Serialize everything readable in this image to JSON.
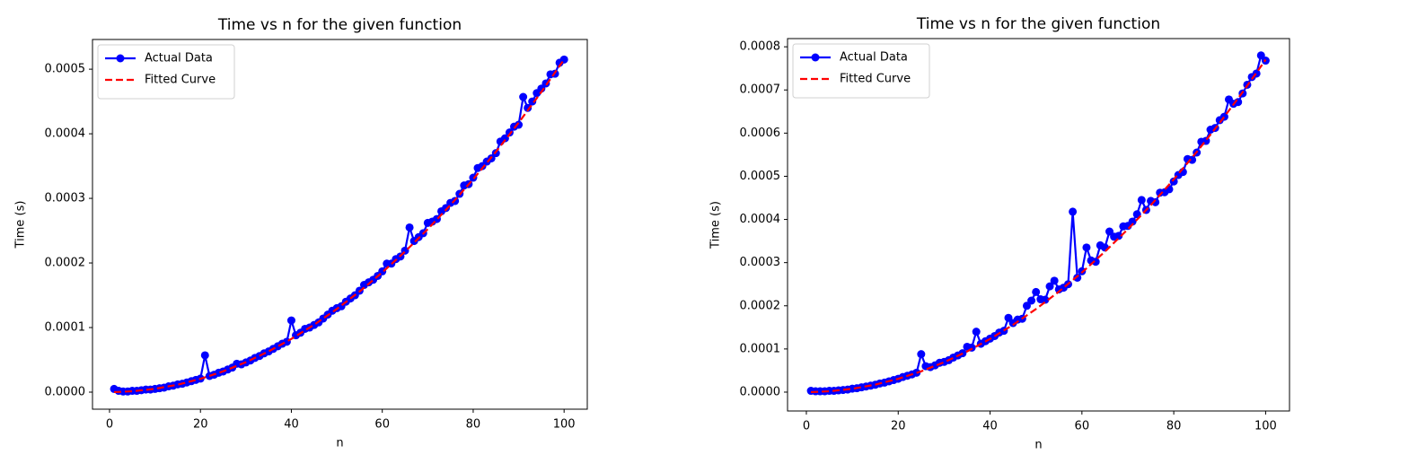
{
  "chart_data": [
    {
      "type": "line",
      "title": "Time vs n for the given function",
      "xlabel": "n",
      "ylabel": "Time (s)",
      "xlim": [
        -3.75,
        105.1
      ],
      "ylim": [
        -2.64e-05,
        0.000546
      ],
      "xticks": [
        0,
        20,
        40,
        60,
        80,
        100
      ],
      "yticks": [
        {
          "value": 0,
          "label": "0.0000"
        },
        {
          "value": 0.0001,
          "label": "0.0001"
        },
        {
          "value": 0.0002,
          "label": "0.0002"
        },
        {
          "value": 0.0003,
          "label": "0.0003"
        },
        {
          "value": 0.0004,
          "label": "0.0004"
        },
        {
          "value": 0.0005,
          "label": "0.0005"
        }
      ],
      "legend": "upper left",
      "series": [
        {
          "name": "Actual Data",
          "color": "#0000ff",
          "linestyle": "solid",
          "marker": "o",
          "x": [
            1,
            2,
            3,
            4,
            5,
            6,
            7,
            8,
            9,
            10,
            11,
            12,
            13,
            14,
            15,
            16,
            17,
            18,
            19,
            20,
            21,
            22,
            23,
            24,
            25,
            26,
            27,
            28,
            29,
            30,
            31,
            32,
            33,
            34,
            35,
            36,
            37,
            38,
            39,
            40,
            41,
            42,
            43,
            44,
            45,
            46,
            47,
            48,
            49,
            50,
            51,
            52,
            53,
            54,
            55,
            56,
            57,
            58,
            59,
            60,
            61,
            62,
            63,
            64,
            65,
            66,
            67,
            68,
            69,
            70,
            71,
            72,
            73,
            74,
            75,
            76,
            77,
            78,
            79,
            80,
            81,
            82,
            83,
            84,
            85,
            86,
            87,
            88,
            89,
            90,
            91,
            92,
            93,
            94,
            95,
            96,
            97,
            98,
            99,
            100
          ],
          "values": [
            5e-06,
            2e-06,
            1e-06,
            1e-06,
            2e-06,
            2e-06,
            3e-06,
            4e-06,
            4e-06,
            5e-06,
            6e-06,
            7e-06,
            9e-06,
            1e-05,
            1.2e-05,
            1.3e-05,
            1.5e-05,
            1.7e-05,
            1.9e-05,
            2.1e-05,
            5.7e-05,
            2.5e-05,
            2.7e-05,
            3e-05,
            3.2e-05,
            3.5e-05,
            3.8e-05,
            4.4e-05,
            4.3e-05,
            4.6e-05,
            4.9e-05,
            5.3e-05,
            5.6e-05,
            6e-05,
            6.3e-05,
            6.7e-05,
            7.1e-05,
            7.5e-05,
            7.8e-05,
            0.000111,
            8.8e-05,
            9.2e-05,
            9.8e-05,
            0.0001,
            0.000104,
            0.000108,
            0.000114,
            0.00012,
            0.000126,
            0.00013,
            0.000133,
            0.00014,
            0.000145,
            0.00015,
            0.000157,
            0.000166,
            0.00017,
            0.000174,
            0.00018,
            0.000187,
            0.000199,
            0.000199,
            0.000206,
            0.00021,
            0.000219,
            0.000255,
            0.000234,
            0.00024,
            0.000246,
            0.000262,
            0.000264,
            0.000268,
            0.00028,
            0.000285,
            0.000293,
            0.000296,
            0.000307,
            0.00032,
            0.000322,
            0.000332,
            0.000347,
            0.00035,
            0.000357,
            0.000362,
            0.00037,
            0.000388,
            0.000393,
            0.000402,
            0.000411,
            0.000414,
            0.000457,
            0.00044,
            0.00045,
            0.000463,
            0.00047,
            0.000478,
            0.000492,
            0.000493,
            0.00051,
            0.000515
          ]
        },
        {
          "name": "Fitted Curve",
          "color": "#ff0000",
          "linestyle": "dashed",
          "marker": "none",
          "x": [
            1,
            5,
            10,
            15,
            20,
            25,
            30,
            35,
            40,
            45,
            50,
            55,
            60,
            65,
            70,
            75,
            80,
            85,
            90,
            95,
            100
          ],
          "values": [
            5.15e-08,
            1.29e-06,
            5.15e-06,
            1.159e-05,
            2.06e-05,
            3.219e-05,
            4.635e-05,
            6.309e-05,
            8.24e-05,
            0.00010429,
            0.00012875,
            0.00015579,
            0.0001854,
            0.00021759,
            0.00025235,
            0.00028969,
            0.0003296,
            0.00037209,
            0.00041715,
            0.00046479,
            0.000515
          ]
        }
      ]
    },
    {
      "type": "line",
      "title": "Time vs n for the given function",
      "xlabel": "n",
      "ylabel": "Time (s)",
      "xlim": [
        -4.1,
        105.2
      ],
      "ylim": [
        -4.37e-05,
        0.000819
      ],
      "xticks": [
        0,
        20,
        40,
        60,
        80,
        100
      ],
      "yticks": [
        {
          "value": 0,
          "label": "0.0000"
        },
        {
          "value": 0.0001,
          "label": "0.0001"
        },
        {
          "value": 0.0002,
          "label": "0.0002"
        },
        {
          "value": 0.0003,
          "label": "0.0003"
        },
        {
          "value": 0.0004,
          "label": "0.0004"
        },
        {
          "value": 0.0005,
          "label": "0.0005"
        },
        {
          "value": 0.0006,
          "label": "0.0006"
        },
        {
          "value": 0.0007,
          "label": "0.0007"
        },
        {
          "value": 0.0008,
          "label": "0.0008"
        }
      ],
      "legend": "upper left",
      "series": [
        {
          "name": "Actual Data",
          "color": "#0000ff",
          "linestyle": "solid",
          "marker": "o",
          "x": [
            1,
            2,
            3,
            4,
            5,
            6,
            7,
            8,
            9,
            10,
            11,
            12,
            13,
            14,
            15,
            16,
            17,
            18,
            19,
            20,
            21,
            22,
            23,
            24,
            25,
            26,
            27,
            28,
            29,
            30,
            31,
            32,
            33,
            34,
            35,
            36,
            37,
            38,
            39,
            40,
            41,
            42,
            43,
            44,
            45,
            46,
            47,
            48,
            49,
            50,
            51,
            52,
            53,
            54,
            55,
            56,
            57,
            58,
            59,
            60,
            61,
            62,
            63,
            64,
            65,
            66,
            67,
            68,
            69,
            70,
            71,
            72,
            73,
            74,
            75,
            76,
            77,
            78,
            79,
            80,
            81,
            82,
            83,
            84,
            85,
            86,
            87,
            88,
            89,
            90,
            91,
            92,
            93,
            94,
            95,
            96,
            97,
            98,
            99,
            100
          ],
          "values": [
            3e-06,
            2e-06,
            2e-06,
            2e-06,
            3e-06,
            3e-06,
            4e-06,
            5e-06,
            6e-06,
            8e-06,
            9e-06,
            1.1e-05,
            1.3e-05,
            1.5e-05,
            1.7e-05,
            2e-05,
            2.2e-05,
            2.5e-05,
            2.8e-05,
            3.1e-05,
            3.5e-05,
            3.8e-05,
            4.1e-05,
            4.5e-05,
            8.8e-05,
            6e-05,
            5.8e-05,
            6.2e-05,
            6.8e-05,
            7e-05,
            7.4e-05,
            8e-05,
            8.5e-05,
            9e-05,
            0.000105,
            0.000103,
            0.00014,
            0.000112,
            0.000118,
            0.000124,
            0.00013,
            0.000138,
            0.000142,
            0.000172,
            0.00016,
            0.000168,
            0.00017,
            0.0002,
            0.000212,
            0.000232,
            0.000215,
            0.000214,
            0.000245,
            0.000258,
            0.000238,
            0.000242,
            0.00025,
            0.000418,
            0.000265,
            0.00028,
            0.000335,
            0.000305,
            0.000302,
            0.00034,
            0.000335,
            0.000372,
            0.00036,
            0.000362,
            0.000384,
            0.000385,
            0.000395,
            0.000412,
            0.000445,
            0.000422,
            0.000443,
            0.00044,
            0.000462,
            0.000463,
            0.00047,
            0.000488,
            0.000503,
            0.00051,
            0.00054,
            0.000538,
            0.000555,
            0.00058,
            0.000582,
            0.000608,
            0.000612,
            0.00063,
            0.000638,
            0.000678,
            0.000668,
            0.000672,
            0.000692,
            0.000712,
            0.00073,
            0.000738,
            0.00078,
            0.000768
          ]
        },
        {
          "name": "Fitted Curve",
          "color": "#ff0000",
          "linestyle": "dashed",
          "marker": "none",
          "x": [
            1,
            5,
            10,
            15,
            20,
            25,
            30,
            35,
            40,
            45,
            50,
            55,
            60,
            65,
            70,
            75,
            80,
            85,
            90,
            95,
            100
          ],
          "values": [
            7.7e-08,
            1.925e-06,
            7.7e-06,
            1.7325e-05,
            3.08e-05,
            4.8125e-05,
            6.93e-05,
            9.4325e-05,
            0.0001232,
            0.000155925,
            0.0001925,
            0.000232925,
            0.0002772,
            0.000325325,
            0.0003773,
            0.000433125,
            0.0004928,
            0.000556325,
            0.0006237,
            0.000694925,
            0.00077
          ]
        }
      ]
    }
  ]
}
